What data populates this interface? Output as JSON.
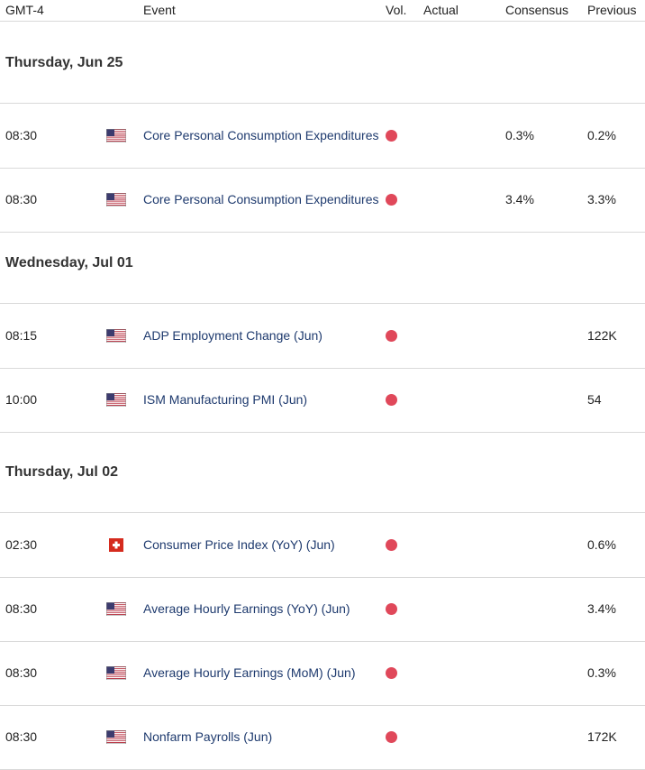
{
  "header": {
    "timezone": "GMT-4",
    "event": "Event",
    "vol": "Vol.",
    "actual": "Actual",
    "consensus": "Consensus",
    "previous": "Previous"
  },
  "colors": {
    "high_volatility": "#e0485a",
    "event_text": "#1e3a6e"
  },
  "groups": [
    {
      "date": "Thursday, Jun 25",
      "events": [
        {
          "time": "08:30",
          "flag": "us-flag-icon",
          "name": "Core Personal Consumption Expenditures",
          "volatility": "high",
          "actual": "",
          "consensus": "0.3%",
          "previous": "0.2%"
        },
        {
          "time": "08:30",
          "flag": "us-flag-icon",
          "name": "Core Personal Consumption Expenditures",
          "volatility": "high",
          "actual": "",
          "consensus": "3.4%",
          "previous": "3.3%"
        }
      ]
    },
    {
      "date": "Wednesday, Jul 01",
      "events": [
        {
          "time": "08:15",
          "flag": "us-flag-icon",
          "name": "ADP Employment Change (Jun)",
          "volatility": "high",
          "actual": "",
          "consensus": "",
          "previous": "122K"
        },
        {
          "time": "10:00",
          "flag": "us-flag-icon",
          "name": "ISM Manufacturing PMI (Jun)",
          "volatility": "high",
          "actual": "",
          "consensus": "",
          "previous": "54"
        }
      ]
    },
    {
      "date": "Thursday, Jul 02",
      "events": [
        {
          "time": "02:30",
          "flag": "swiss-flag-icon",
          "name": "Consumer Price Index (YoY) (Jun)",
          "volatility": "high",
          "actual": "",
          "consensus": "",
          "previous": "0.6%"
        },
        {
          "time": "08:30",
          "flag": "us-flag-icon",
          "name": "Average Hourly Earnings (YoY) (Jun)",
          "volatility": "high",
          "actual": "",
          "consensus": "",
          "previous": "3.4%"
        },
        {
          "time": "08:30",
          "flag": "us-flag-icon",
          "name": "Average Hourly Earnings (MoM) (Jun)",
          "volatility": "high",
          "actual": "",
          "consensus": "",
          "previous": "0.3%"
        },
        {
          "time": "08:30",
          "flag": "us-flag-icon",
          "name": "Nonfarm Payrolls (Jun)",
          "volatility": "high",
          "actual": "",
          "consensus": "",
          "previous": "172K"
        }
      ]
    }
  ]
}
